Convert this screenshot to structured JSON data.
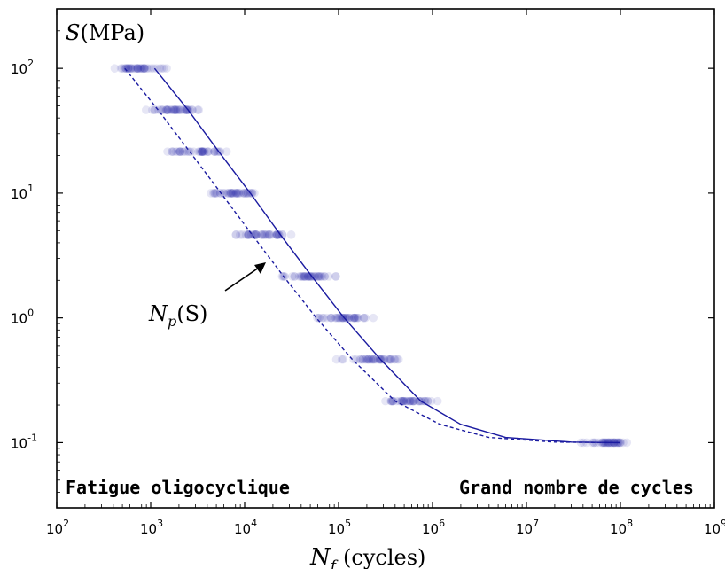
{
  "chart_data": {
    "type": "scatter",
    "x_scale": "log",
    "y_scale": "log",
    "xlim": [
      100,
      1000000000
    ],
    "ylim": [
      0.03,
      300
    ],
    "x_ticks": [
      {
        "value": 100,
        "base": "10",
        "exp": "2"
      },
      {
        "value": 1000,
        "base": "10",
        "exp": "3"
      },
      {
        "value": 10000,
        "base": "10",
        "exp": "4"
      },
      {
        "value": 100000,
        "base": "10",
        "exp": "5"
      },
      {
        "value": 1000000,
        "base": "10",
        "exp": "6"
      },
      {
        "value": 10000000,
        "base": "10",
        "exp": "7"
      },
      {
        "value": 100000000,
        "base": "10",
        "exp": "8"
      },
      {
        "value": 1000000000,
        "base": "10",
        "exp": "9"
      }
    ],
    "y_ticks": [
      {
        "value": 100,
        "base": "10",
        "exp": "2"
      },
      {
        "value": 10,
        "base": "10",
        "exp": "1"
      },
      {
        "value": 1,
        "base": "10",
        "exp": "0"
      },
      {
        "value": 0.1,
        "base": "10",
        "exp": "-1"
      }
    ],
    "xlabel": {
      "main": "N",
      "sub": "f",
      "unit": "(cycles)"
    },
    "ylabel": {
      "main": "S",
      "unit": "(MPa)"
    },
    "annotation": {
      "main": "N",
      "sub": "p",
      "arg": "(S)",
      "target": [
        18000,
        3.0
      ]
    },
    "region_labels": {
      "low": "Fatigue oligocyclique",
      "high": "Grand nombre de cycles"
    },
    "scatter_groups": [
      {
        "S": 100,
        "N_min": 300,
        "N_max": 1900
      },
      {
        "S": 46.4,
        "N_min": 850,
        "N_max": 4200
      },
      {
        "S": 21.5,
        "N_min": 1100,
        "N_max": 7500
      },
      {
        "S": 10,
        "N_min": 3400,
        "N_max": 19000
      },
      {
        "S": 4.64,
        "N_min": 6000,
        "N_max": 43000
      },
      {
        "S": 2.15,
        "N_min": 20000,
        "N_max": 130000
      },
      {
        "S": 1.0,
        "N_min": 45000,
        "N_max": 300000
      },
      {
        "S": 0.464,
        "N_min": 80000,
        "N_max": 750000
      },
      {
        "S": 0.215,
        "N_min": 250000,
        "N_max": 1250000
      },
      {
        "S": 0.1,
        "N_min": 30000000,
        "N_max": 190000000
      }
    ],
    "series": [
      {
        "style": "solid",
        "color": "#1a1aa0",
        "points": [
          [
            1100,
            100
          ],
          [
            2500,
            46.4
          ],
          [
            5300,
            21.5
          ],
          [
            11500,
            10
          ],
          [
            24000,
            4.64
          ],
          [
            52000,
            2.15
          ],
          [
            115000,
            1.0
          ],
          [
            280000,
            0.464
          ],
          [
            750000,
            0.215
          ],
          [
            2000000,
            0.14
          ],
          [
            6000000,
            0.11
          ],
          [
            30000000,
            0.101
          ],
          [
            100000000,
            0.1
          ]
        ]
      },
      {
        "style": "dashed",
        "color": "#1a1aa0",
        "points": [
          [
            530,
            100
          ],
          [
            1200,
            46.4
          ],
          [
            2600,
            21.5
          ],
          [
            5600,
            10
          ],
          [
            12000,
            4.64
          ],
          [
            26000,
            2.15
          ],
          [
            58000,
            1.0
          ],
          [
            140000,
            0.464
          ],
          [
            400000,
            0.215
          ],
          [
            1200000,
            0.14
          ],
          [
            4000000,
            0.11
          ],
          [
            20000000,
            0.101
          ],
          [
            100000000,
            0.1
          ]
        ]
      }
    ],
    "colors": {
      "points": "#1a1aa0",
      "lines": "#1a1aa0",
      "axes": "#000000"
    }
  }
}
